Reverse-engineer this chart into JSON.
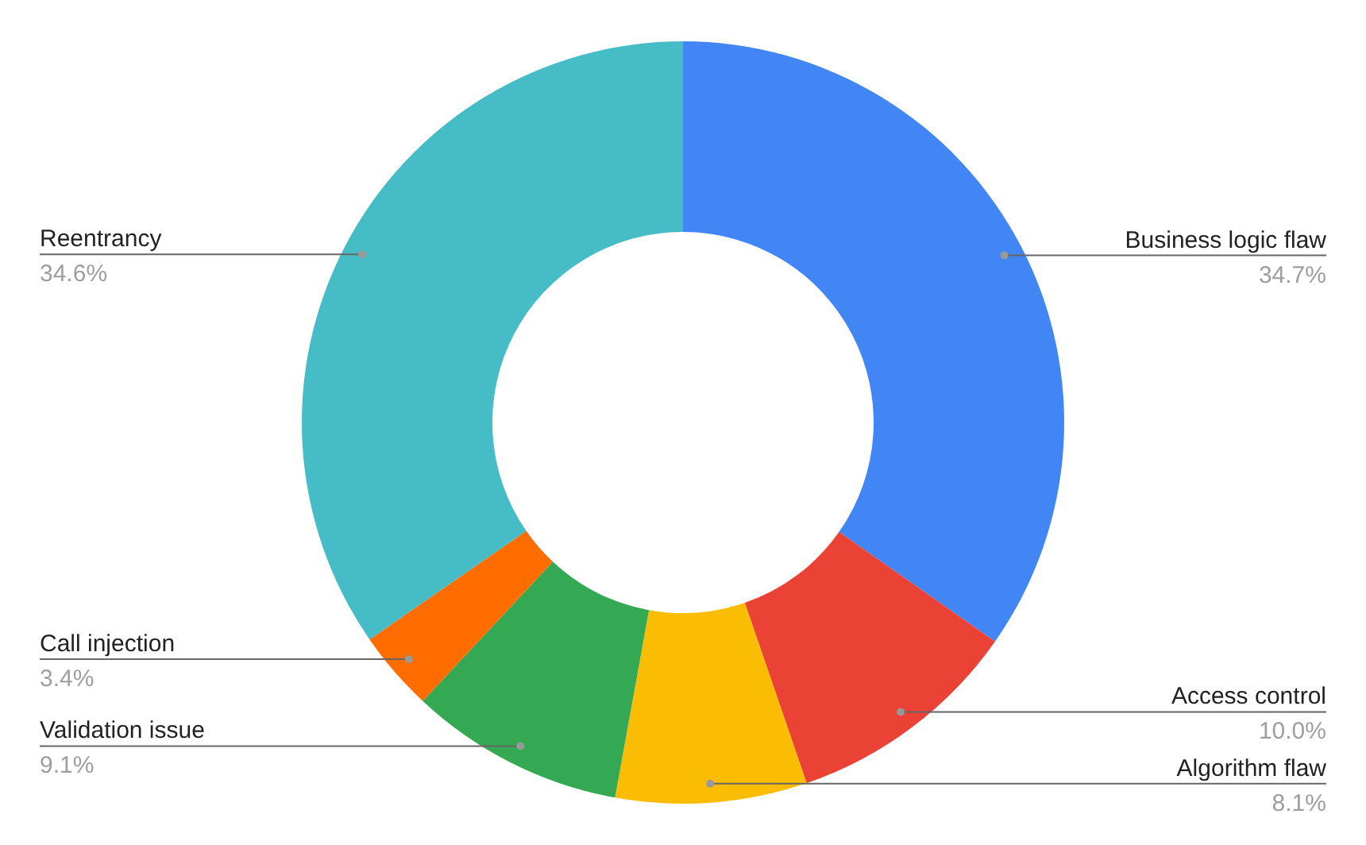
{
  "chart_data": {
    "type": "donut",
    "categories": [
      "Business logic flaw",
      "Access control",
      "Algorithm flaw",
      "Validation issue",
      "Call injection",
      "Reentrancy"
    ],
    "values": [
      34.7,
      10.0,
      8.1,
      9.1,
      3.4,
      34.6
    ],
    "colors": [
      "#4285f4",
      "#ea4335",
      "#fbbc04",
      "#34a853",
      "#ff6d01",
      "#46bdc6"
    ],
    "value_labels": [
      "34.7%",
      "10.0%",
      "8.1%",
      "9.1%",
      "3.4%",
      "34.6%"
    ]
  }
}
